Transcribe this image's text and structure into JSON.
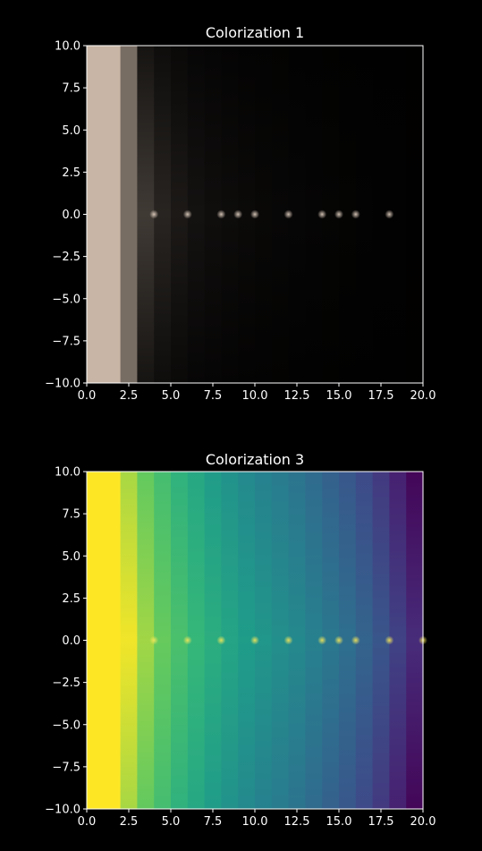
{
  "figure": {
    "background": "#000000",
    "text_color": "#ffffff"
  },
  "chart_data": [
    {
      "type": "heatmap",
      "title": "Colorization 1",
      "xlabel": "",
      "ylabel": "",
      "xlim": [
        0.0,
        20.0
      ],
      "ylim": [
        -10.0,
        10.0
      ],
      "xticks": [
        "0.0",
        "2.5",
        "5.0",
        "7.5",
        "10.0",
        "12.5",
        "15.0",
        "17.5",
        "20.0"
      ],
      "yticks": [
        "10.0",
        "7.5",
        "5.0",
        "2.5",
        "0.0",
        "−2.5",
        "−5.0",
        "−7.5",
        "−10.0"
      ],
      "grid": false,
      "colormap": "brightness",
      "band_edges": [
        0,
        2,
        3,
        4,
        5,
        6,
        7,
        8,
        9,
        10,
        11,
        12,
        13,
        14,
        15,
        16,
        17,
        18,
        19,
        20
      ],
      "band_levels": [
        1.0,
        0.6,
        0.32,
        0.2,
        0.14,
        0.1,
        0.08,
        0.065,
        0.055,
        0.045,
        0.04,
        0.035,
        0.03,
        0.025,
        0.02,
        0.016,
        0.013,
        0.01,
        0.008
      ],
      "highlight_points_x": [
        4,
        6,
        8,
        9,
        10,
        12,
        14,
        15,
        16,
        18
      ],
      "highlight_y": 0.0
    },
    {
      "type": "heatmap",
      "title": "Colorization 3",
      "xlabel": "",
      "ylabel": "",
      "xlim": [
        0.0,
        20.0
      ],
      "ylim": [
        -10.0,
        10.0
      ],
      "xticks": [
        "0.0",
        "2.5",
        "5.0",
        "7.5",
        "10.0",
        "12.5",
        "15.0",
        "17.5",
        "20.0"
      ],
      "yticks": [
        "10.0",
        "7.5",
        "5.0",
        "2.5",
        "0.0",
        "−2.5",
        "−5.0",
        "−7.5",
        "−10.0"
      ],
      "grid": false,
      "colormap": "viridis",
      "band_edges": [
        0,
        2,
        3,
        4,
        5,
        6,
        7,
        8,
        9,
        10,
        11,
        12,
        13,
        14,
        15,
        16,
        17,
        18,
        19,
        20
      ],
      "band_levels": [
        1.0,
        0.93,
        0.86,
        0.8,
        0.74,
        0.69,
        0.64,
        0.6,
        0.56,
        0.53,
        0.5,
        0.47,
        0.43,
        0.39,
        0.35,
        0.3,
        0.24,
        0.16,
        0.08
      ],
      "highlight_points_x": [
        4,
        6,
        8,
        10,
        12,
        14,
        15,
        16,
        18,
        20
      ],
      "highlight_y": 0.0
    }
  ]
}
